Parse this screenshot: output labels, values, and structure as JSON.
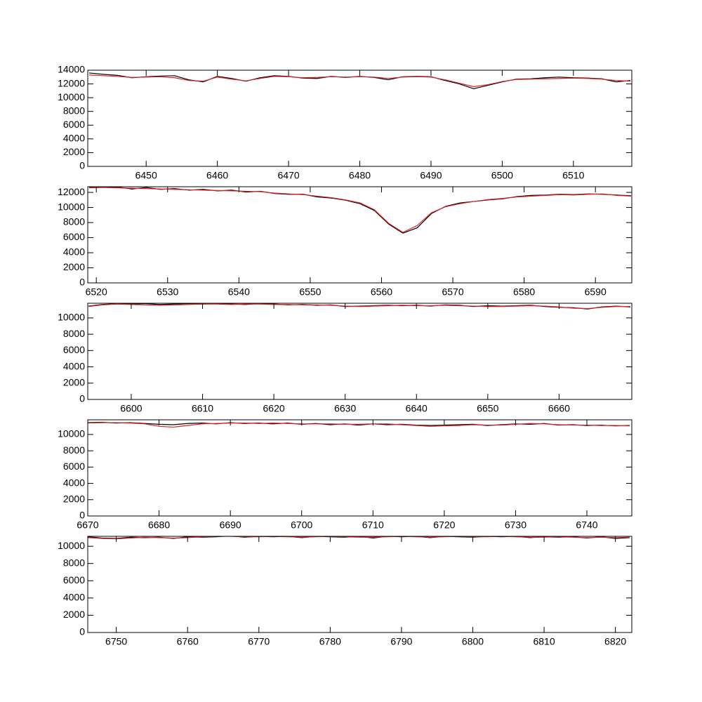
{
  "chart_data": [
    {
      "type": "line",
      "x": [
        6442,
        6444,
        6446,
        6448,
        6450,
        6452,
        6454,
        6456,
        6458,
        6460,
        6462,
        6464,
        6466,
        6468,
        6470,
        6472,
        6474,
        6476,
        6478,
        6480,
        6482,
        6484,
        6486,
        6488,
        6490,
        6492,
        6494,
        6496,
        6498,
        6500,
        6502,
        6504,
        6506,
        6508,
        6510,
        6512,
        6514,
        6516,
        6518
      ],
      "series": [
        {
          "color": "#000000",
          "values": [
            13600,
            13400,
            13250,
            12900,
            13050,
            13150,
            13200,
            12600,
            12300,
            13100,
            12800,
            12400,
            12900,
            13200,
            13100,
            12850,
            12800,
            13100,
            12950,
            13100,
            12950,
            12600,
            13050,
            13100,
            13050,
            12500,
            12000,
            11300,
            11800,
            12300,
            12700,
            12750,
            12900,
            13000,
            12900,
            12850,
            12750,
            12300,
            12500
          ]
        },
        {
          "color": "#dd2222",
          "values": [
            13300,
            13200,
            13100,
            12950,
            13000,
            13050,
            12900,
            12500,
            12400,
            13000,
            12700,
            12450,
            12800,
            13100,
            13050,
            12900,
            12950,
            13050,
            13000,
            13050,
            13000,
            12800,
            13000,
            13050,
            13000,
            12600,
            12100,
            11600,
            11900,
            12350,
            12650,
            12700,
            12750,
            12800,
            12850,
            12800,
            12700,
            12500,
            12400
          ]
        }
      ],
      "xlim": [
        6441.8,
        6518.2
      ],
      "ylim": [
        0,
        14000
      ],
      "xticks": [
        6450,
        6460,
        6470,
        6480,
        6490,
        6500,
        6510
      ],
      "yticks": [
        0,
        2000,
        4000,
        6000,
        8000,
        10000,
        12000,
        14000
      ]
    },
    {
      "type": "line",
      "x": [
        6519,
        6521,
        6523,
        6525,
        6527,
        6529,
        6531,
        6533,
        6535,
        6537,
        6539,
        6541,
        6543,
        6545,
        6547,
        6549,
        6551,
        6553,
        6555,
        6557,
        6559,
        6561,
        6563,
        6565,
        6567,
        6569,
        6571,
        6573,
        6575,
        6577,
        6579,
        6581,
        6583,
        6585,
        6587,
        6589,
        6591,
        6593,
        6595
      ],
      "series": [
        {
          "color": "#000000",
          "values": [
            12650,
            12700,
            12700,
            12450,
            12650,
            12400,
            12500,
            12300,
            12400,
            12200,
            12300,
            12050,
            12150,
            11850,
            11750,
            11750,
            11400,
            11250,
            10950,
            10500,
            9600,
            7800,
            6600,
            7300,
            9200,
            10150,
            10600,
            10800,
            11000,
            11150,
            11450,
            11600,
            11650,
            11750,
            11700,
            11800,
            11750,
            11650,
            11550
          ]
        },
        {
          "color": "#dd2222",
          "values": [
            12600,
            12650,
            12600,
            12550,
            12500,
            12450,
            12400,
            12350,
            12300,
            12250,
            12200,
            12150,
            12100,
            11900,
            11800,
            11700,
            11500,
            11300,
            11000,
            10600,
            9700,
            7900,
            6700,
            7600,
            9300,
            10100,
            10500,
            10800,
            11050,
            11200,
            11400,
            11500,
            11600,
            11700,
            11650,
            11750,
            11800,
            11600,
            11500
          ]
        }
      ],
      "xlim": [
        6518.8,
        6595.1
      ],
      "ylim": [
        0,
        12750
      ],
      "xticks": [
        6520,
        6530,
        6540,
        6550,
        6560,
        6570,
        6580,
        6590
      ],
      "yticks": [
        0,
        2000,
        4000,
        6000,
        8000,
        10000,
        12000
      ]
    },
    {
      "type": "line",
      "x": [
        6594,
        6596,
        6598,
        6600,
        6602,
        6604,
        6606,
        6608,
        6610,
        6612,
        6614,
        6616,
        6618,
        6620,
        6622,
        6624,
        6626,
        6628,
        6630,
        6632,
        6634,
        6636,
        6638,
        6640,
        6642,
        6644,
        6646,
        6648,
        6650,
        6652,
        6654,
        6656,
        6658,
        6660,
        6662,
        6664,
        6666,
        6668,
        6670
      ],
      "series": [
        {
          "color": "#000000",
          "values": [
            11450,
            11650,
            11750,
            11700,
            11750,
            11650,
            11700,
            11750,
            11700,
            11750,
            11700,
            11650,
            11750,
            11700,
            11600,
            11650,
            11550,
            11600,
            11400,
            11450,
            11500,
            11550,
            11500,
            11550,
            11450,
            11600,
            11550,
            11400,
            11500,
            11450,
            11500,
            11550,
            11400,
            11300,
            11250,
            11100,
            11350,
            11450,
            11350
          ]
        },
        {
          "color": "#dd2222",
          "values": [
            11400,
            11600,
            11700,
            11650,
            11600,
            11550,
            11600,
            11650,
            11700,
            11700,
            11650,
            11700,
            11700,
            11650,
            11650,
            11600,
            11600,
            11550,
            11450,
            11400,
            11450,
            11500,
            11550,
            11500,
            11500,
            11550,
            11500,
            11450,
            11400,
            11400,
            11450,
            11500,
            11450,
            11350,
            11200,
            11150,
            11300,
            11400,
            11400
          ]
        }
      ],
      "xlim": [
        6593.9,
        6670.2
      ],
      "ylim": [
        0,
        11800
      ],
      "xticks": [
        6600,
        6610,
        6620,
        6630,
        6640,
        6650,
        6660
      ],
      "yticks": [
        0,
        2000,
        4000,
        6000,
        8000,
        10000
      ]
    },
    {
      "type": "line",
      "x": [
        6670,
        6672,
        6674,
        6676,
        6678,
        6680,
        6682,
        6684,
        6686,
        6688,
        6690,
        6692,
        6694,
        6696,
        6698,
        6700,
        6702,
        6704,
        6706,
        6708,
        6710,
        6712,
        6714,
        6716,
        6718,
        6720,
        6722,
        6724,
        6726,
        6728,
        6730,
        6732,
        6734,
        6736,
        6738,
        6740,
        6742,
        6744,
        6746
      ],
      "series": [
        {
          "color": "#000000",
          "values": [
            11450,
            11500,
            11400,
            11450,
            11350,
            11250,
            11200,
            11350,
            11400,
            11300,
            11450,
            11350,
            11400,
            11300,
            11400,
            11250,
            11350,
            11200,
            11300,
            11150,
            11300,
            11200,
            11250,
            11150,
            11100,
            11150,
            11200,
            11250,
            11100,
            11200,
            11300,
            11250,
            11350,
            11150,
            11200,
            11100,
            11150,
            11050,
            11100
          ]
        },
        {
          "color": "#dd2222",
          "values": [
            11400,
            11450,
            11450,
            11400,
            11300,
            11000,
            10900,
            11100,
            11300,
            11350,
            11400,
            11400,
            11350,
            11400,
            11350,
            11300,
            11300,
            11300,
            11250,
            11250,
            11300,
            11300,
            11200,
            11100,
            11000,
            11050,
            11100,
            11200,
            11150,
            11150,
            11250,
            11350,
            11300,
            11200,
            11150,
            11150,
            11100,
            11100,
            11050
          ]
        }
      ],
      "xlim": [
        6670,
        6746.3
      ],
      "ylim": [
        0,
        11800
      ],
      "xticks": [
        6670,
        6680,
        6690,
        6700,
        6710,
        6720,
        6730,
        6740
      ],
      "yticks": [
        0,
        2000,
        4000,
        6000,
        8000,
        10000
      ]
    },
    {
      "type": "line",
      "x": [
        6746,
        6748,
        6750,
        6752,
        6754,
        6756,
        6758,
        6760,
        6762,
        6764,
        6766,
        6768,
        6770,
        6772,
        6774,
        6776,
        6778,
        6780,
        6782,
        6784,
        6786,
        6788,
        6790,
        6792,
        6794,
        6796,
        6798,
        6800,
        6802,
        6804,
        6806,
        6808,
        6810,
        6812,
        6814,
        6816,
        6818,
        6820,
        6822
      ],
      "series": [
        {
          "color": "#000000",
          "values": [
            11100,
            10950,
            10900,
            11050,
            11000,
            11050,
            10900,
            11100,
            11050,
            11100,
            11200,
            11050,
            11150,
            11100,
            11150,
            11000,
            11150,
            11100,
            11050,
            11150,
            10950,
            11150,
            11100,
            11150,
            11000,
            11150,
            11100,
            11050,
            11150,
            11100,
            11150,
            11000,
            11100,
            11050,
            11100,
            10950,
            11100,
            10900,
            11000
          ]
        },
        {
          "color": "#dd2222",
          "values": [
            11000,
            10900,
            10850,
            10950,
            11050,
            11000,
            10950,
            11000,
            11100,
            11150,
            11150,
            11100,
            11100,
            11150,
            11100,
            11050,
            11100,
            11150,
            11100,
            11050,
            11050,
            11100,
            11150,
            11100,
            11050,
            11100,
            11150,
            11100,
            11100,
            11150,
            11100,
            11050,
            11050,
            11100,
            11050,
            11000,
            11050,
            11000,
            11050
          ]
        }
      ],
      "xlim": [
        6746,
        6822.3
      ],
      "ylim": [
        0,
        11150
      ],
      "xticks": [
        6750,
        6760,
        6770,
        6780,
        6790,
        6800,
        6810,
        6820
      ],
      "yticks": [
        0,
        2000,
        4000,
        6000,
        8000,
        10000
      ]
    }
  ]
}
